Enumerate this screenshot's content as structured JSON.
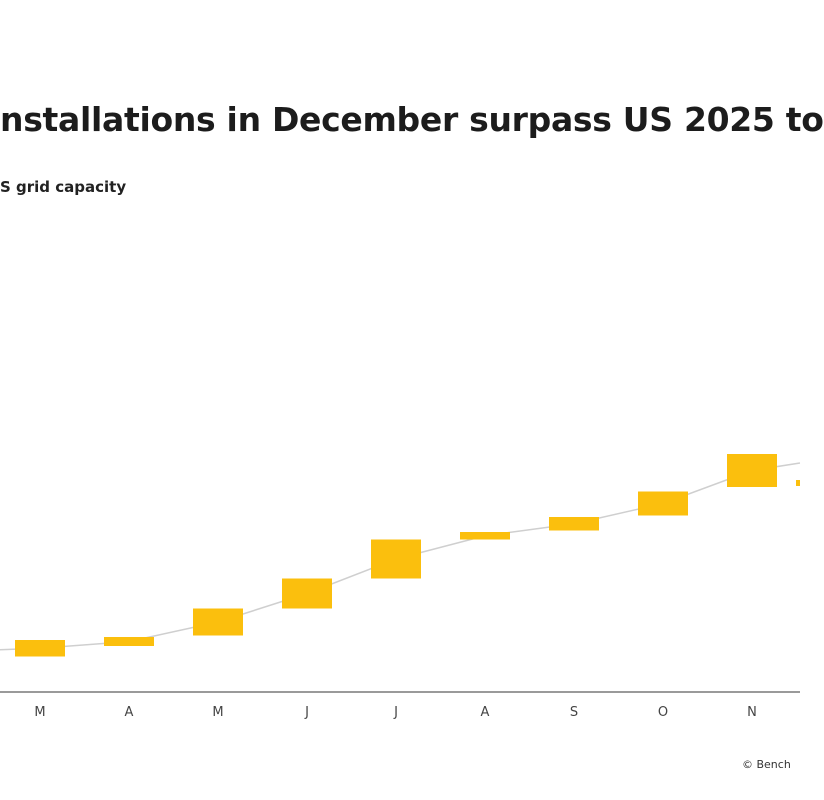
{
  "title": "nstallations in December surpass US 2025 to",
  "subtitle": "S grid capacity",
  "credit": "© Bench",
  "colors": {
    "bar": "#fbbf0d",
    "connector": "#cfcfcf",
    "axis": "#9a9a9a",
    "background": "#ffffff"
  },
  "chart_data": {
    "type": "waterfall",
    "categories": [
      "M",
      "A",
      "M",
      "J",
      "J",
      "A",
      "S",
      "O",
      "N"
    ],
    "series": [
      {
        "start": [
          0.25,
          0.6,
          0.95,
          1.85,
          2.85,
          4.15,
          4.45,
          4.95,
          5.9
        ],
        "values": [
          0.55,
          0.3,
          0.9,
          1.0,
          1.3,
          0.25,
          0.45,
          0.8,
          1.1
        ]
      }
    ],
    "grid": false
  }
}
